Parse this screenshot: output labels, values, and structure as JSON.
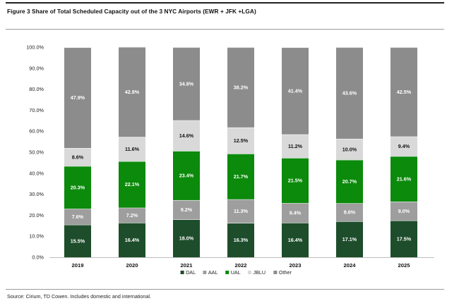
{
  "figure": {
    "title": "Figure 3 Share of Total Scheduled Capacity out of the 3 NYC Airports (EWR + JFK +LGA)",
    "source": "Source: Cirium, TD Cowen. Includes domestic and international."
  },
  "chart_data": {
    "type": "bar",
    "stacked": true,
    "categories": [
      "2019",
      "2020",
      "2021",
      "2022",
      "2023",
      "2024",
      "2025"
    ],
    "series": [
      {
        "name": "DAL",
        "color": "#1e4d2b",
        "label_color": "#ffffff",
        "values": [
          15.5,
          16.4,
          18.0,
          16.3,
          16.4,
          17.1,
          17.5
        ],
        "labels": [
          "15.5%",
          "16.4%",
          "18.0%",
          "16.3%",
          "16.4%",
          "17.1%",
          "17.5%"
        ]
      },
      {
        "name": "AAL",
        "color": "#9e9e9e",
        "label_color": "#ffffff",
        "values": [
          7.6,
          7.2,
          9.2,
          11.3,
          9.4,
          8.6,
          9.0
        ],
        "labels": [
          "7.6%",
          "7.2%",
          "9.2%",
          "11.3%",
          "9.4%",
          "8.6%",
          "9.0%"
        ]
      },
      {
        "name": "UAL",
        "color": "#0b8a0b",
        "label_color": "#ffffff",
        "values": [
          20.3,
          22.1,
          23.4,
          21.7,
          21.5,
          20.7,
          21.6
        ],
        "labels": [
          "20.3%",
          "22.1%",
          "23.4%",
          "21.7%",
          "21.5%",
          "20.7%",
          "21.6%"
        ]
      },
      {
        "name": "JBLU",
        "color": "#d9d9d9",
        "label_color": "#111111",
        "values": [
          8.6,
          11.6,
          14.6,
          12.5,
          11.2,
          10.0,
          9.4
        ],
        "labels": [
          "8.6%",
          "11.6%",
          "14.6%",
          "12.5%",
          "11.2%",
          "10.0%",
          "9.4%"
        ]
      },
      {
        "name": "Other",
        "color": "#8c8c8c",
        "label_color": "#ffffff",
        "values": [
          47.9,
          42.8,
          34.8,
          38.2,
          41.4,
          43.6,
          42.5
        ],
        "labels": [
          "47.9%",
          "42.8%",
          "34.8%",
          "38.2%",
          "41.4%",
          "43.6%",
          "42.5%"
        ]
      }
    ],
    "ylim": [
      0,
      100
    ],
    "yticks": [
      "0.0%",
      "10.0%",
      "20.0%",
      "30.0%",
      "40.0%",
      "50.0%",
      "60.0%",
      "70.0%",
      "80.0%",
      "90.0%",
      "100.0%"
    ],
    "xlabel": "",
    "ylabel": "",
    "grid": false,
    "legend_position": "bottom"
  }
}
